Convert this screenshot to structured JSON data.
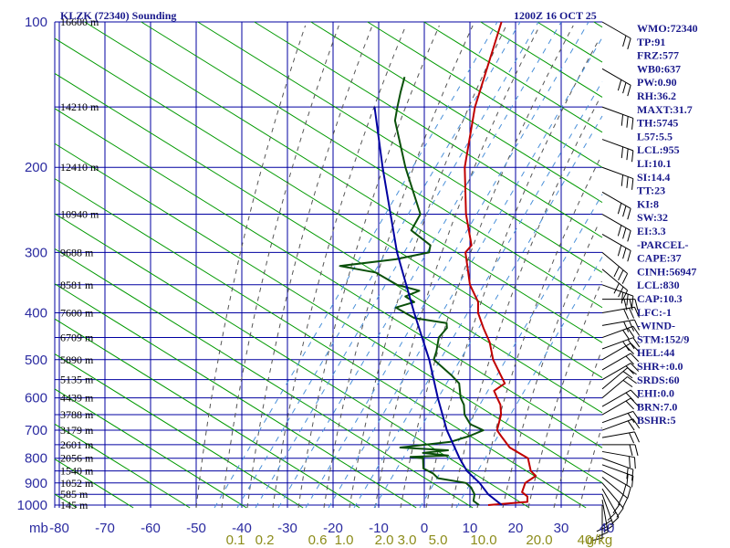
{
  "header": {
    "station": "KLZK (72340) Sounding",
    "datetime": "1200Z 16 OCT 25"
  },
  "chart_data": {
    "type": "skew-t log-p sounding",
    "pressure_axis": {
      "label": "mb",
      "range_mb": [
        100,
        1000
      ],
      "ticks": [
        {
          "p": 100,
          "label": "100"
        },
        {
          "p": 200,
          "label": "200"
        },
        {
          "p": 300,
          "label": "300"
        },
        {
          "p": 400,
          "label": "400"
        },
        {
          "p": 500,
          "label": "500"
        },
        {
          "p": 600,
          "label": "600"
        },
        {
          "p": 700,
          "label": "700"
        },
        {
          "p": 800,
          "label": "800"
        },
        {
          "p": 900,
          "label": "900"
        },
        {
          "p": 1000,
          "label": "1000"
        }
      ]
    },
    "temperature_axis": {
      "label_unit": "°C",
      "range_c": [
        -80,
        40
      ],
      "ticks": [
        {
          "t": -80,
          "label": "-80"
        },
        {
          "t": -70,
          "label": "-70"
        },
        {
          "t": -60,
          "label": "-60"
        },
        {
          "t": -50,
          "label": "-50"
        },
        {
          "t": -40,
          "label": "-40"
        },
        {
          "t": -30,
          "label": "-30"
        },
        {
          "t": -20,
          "label": "-20"
        },
        {
          "t": -10,
          "label": "-10"
        },
        {
          "t": 0,
          "label": "0"
        },
        {
          "t": 10,
          "label": "10"
        },
        {
          "t": 20,
          "label": "20"
        },
        {
          "t": 30,
          "label": "30"
        },
        {
          "t": 40,
          "label": "40"
        }
      ]
    },
    "mixing_ratio_labels": [
      {
        "w": 0.1,
        "label": "0.1"
      },
      {
        "w": 0.2,
        "label": "0.2"
      },
      {
        "w": 0.6,
        "label": "0.6"
      },
      {
        "w": 1.0,
        "label": "1.0"
      },
      {
        "w": 2.0,
        "label": "2.0"
      },
      {
        "w": 3.0,
        "label": "3.0"
      },
      {
        "w": 5.0,
        "label": "5.0"
      },
      {
        "w": 10.0,
        "label": "10.0"
      },
      {
        "w": 20.0,
        "label": "20.0"
      },
      {
        "w": 40.0,
        "label": "40"
      }
    ],
    "mixing_ratio_unit": "g/kg",
    "height_labels": [
      {
        "p": 100,
        "label": "16600 m"
      },
      {
        "p": 150,
        "label": "14210 m"
      },
      {
        "p": 200,
        "label": "12410 m"
      },
      {
        "p": 250,
        "label": "10940 m"
      },
      {
        "p": 300,
        "label": "9688 m"
      },
      {
        "p": 350,
        "label": "8581 m"
      },
      {
        "p": 400,
        "label": "7600 m"
      },
      {
        "p": 450,
        "label": "6709 m"
      },
      {
        "p": 500,
        "label": "5890 m"
      },
      {
        "p": 550,
        "label": "5135 m"
      },
      {
        "p": 600,
        "label": "4439 m"
      },
      {
        "p": 650,
        "label": "3788 m"
      },
      {
        "p": 700,
        "label": "3179 m"
      },
      {
        "p": 750,
        "label": "2601 m"
      },
      {
        "p": 800,
        "label": "2056 m"
      },
      {
        "p": 850,
        "label": "1540 m"
      },
      {
        "p": 900,
        "label": "1052 m"
      },
      {
        "p": 950,
        "label": "585 m"
      },
      {
        "p": 1000,
        "label": "145 m"
      }
    ],
    "series": [
      {
        "name": "temperature",
        "color": "#c00000",
        "points": [
          [
            1000,
            14
          ],
          [
            985,
            22
          ],
          [
            960,
            21
          ],
          [
            940,
            19
          ],
          [
            900,
            18
          ],
          [
            870,
            19
          ],
          [
            850,
            17
          ],
          [
            800,
            14
          ],
          [
            760,
            8
          ],
          [
            720,
            4
          ],
          [
            700,
            2
          ],
          [
            650,
            0
          ],
          [
            620,
            -2
          ],
          [
            600,
            -4
          ],
          [
            580,
            -6
          ],
          [
            560,
            -5
          ],
          [
            500,
            -12
          ],
          [
            460,
            -16
          ],
          [
            430,
            -20
          ],
          [
            400,
            -24
          ],
          [
            380,
            -26
          ],
          [
            350,
            -31
          ],
          [
            300,
            -38
          ],
          [
            290,
            -38
          ],
          [
            250,
            -45
          ],
          [
            200,
            -54
          ],
          [
            150,
            -63
          ],
          [
            100,
            -73
          ]
        ]
      },
      {
        "name": "dewpoint",
        "color": "#0a500a",
        "points": [
          [
            1000,
            12
          ],
          [
            980,
            10
          ],
          [
            950,
            9
          ],
          [
            920,
            7
          ],
          [
            900,
            5
          ],
          [
            880,
            -2
          ],
          [
            860,
            -4
          ],
          [
            840,
            -7
          ],
          [
            800,
            -9
          ],
          [
            795,
            -12
          ],
          [
            790,
            -4
          ],
          [
            780,
            -10
          ],
          [
            770,
            -5
          ],
          [
            760,
            -16
          ],
          [
            740,
            -6
          ],
          [
            720,
            -3
          ],
          [
            700,
            -1
          ],
          [
            680,
            -5
          ],
          [
            650,
            -8
          ],
          [
            620,
            -10
          ],
          [
            600,
            -12
          ],
          [
            560,
            -15
          ],
          [
            540,
            -18
          ],
          [
            500,
            -25
          ],
          [
            480,
            -26
          ],
          [
            450,
            -28
          ],
          [
            430,
            -28
          ],
          [
            420,
            -29
          ],
          [
            410,
            -37
          ],
          [
            400,
            -40
          ],
          [
            390,
            -43
          ],
          [
            380,
            -40
          ],
          [
            370,
            -43
          ],
          [
            360,
            -41
          ],
          [
            350,
            -47
          ],
          [
            330,
            -54
          ],
          [
            320,
            -63
          ],
          [
            310,
            -52
          ],
          [
            300,
            -46
          ],
          [
            290,
            -47
          ],
          [
            270,
            -54
          ],
          [
            250,
            -55
          ],
          [
            200,
            -67
          ],
          [
            160,
            -78
          ],
          [
            150,
            -80
          ],
          [
            140,
            -82
          ],
          [
            130,
            -84
          ]
        ]
      },
      {
        "name": "parcel",
        "color": "#0000a0",
        "points": [
          [
            1000,
            17
          ],
          [
            950,
            12
          ],
          [
            900,
            8
          ],
          [
            850,
            3
          ],
          [
            800,
            -1
          ],
          [
            700,
            -9
          ],
          [
            600,
            -17
          ],
          [
            500,
            -26
          ],
          [
            400,
            -38
          ],
          [
            300,
            -53
          ],
          [
            200,
            -72
          ],
          [
            150,
            -85
          ]
        ]
      }
    ],
    "wind_barbs": [
      {
        "p": 1000,
        "dir": 180,
        "kt": 10
      },
      {
        "p": 975,
        "dir": 190,
        "kt": 15
      },
      {
        "p": 950,
        "dir": 200,
        "kt": 15
      },
      {
        "p": 925,
        "dir": 210,
        "kt": 15
      },
      {
        "p": 900,
        "dir": 220,
        "kt": 15
      },
      {
        "p": 875,
        "dir": 230,
        "kt": 15
      },
      {
        "p": 850,
        "dir": 240,
        "kt": 15
      },
      {
        "p": 825,
        "dir": 250,
        "kt": 15
      },
      {
        "p": 800,
        "dir": 250,
        "kt": 15
      },
      {
        "p": 775,
        "dir": 260,
        "kt": 15
      },
      {
        "p": 750,
        "dir": 270,
        "kt": 15
      },
      {
        "p": 725,
        "dir": 280,
        "kt": 15
      },
      {
        "p": 700,
        "dir": 290,
        "kt": 15
      },
      {
        "p": 675,
        "dir": 290,
        "kt": 15
      },
      {
        "p": 650,
        "dir": 300,
        "kt": 20
      },
      {
        "p": 625,
        "dir": 300,
        "kt": 20
      },
      {
        "p": 600,
        "dir": 310,
        "kt": 20
      },
      {
        "p": 575,
        "dir": 310,
        "kt": 20
      },
      {
        "p": 550,
        "dir": 300,
        "kt": 20
      },
      {
        "p": 525,
        "dir": 300,
        "kt": 20
      },
      {
        "p": 500,
        "dir": 300,
        "kt": 20
      },
      {
        "p": 475,
        "dir": 290,
        "kt": 25
      },
      {
        "p": 450,
        "dir": 290,
        "kt": 25
      },
      {
        "p": 425,
        "dir": 280,
        "kt": 25
      },
      {
        "p": 400,
        "dir": 280,
        "kt": 25
      },
      {
        "p": 375,
        "dir": 270,
        "kt": 25
      },
      {
        "p": 350,
        "dir": 250,
        "kt": 25
      },
      {
        "p": 325,
        "dir": 230,
        "kt": 25
      },
      {
        "p": 300,
        "dir": 230,
        "kt": 30
      },
      {
        "p": 275,
        "dir": 240,
        "kt": 30
      },
      {
        "p": 250,
        "dir": 240,
        "kt": 30
      },
      {
        "p": 225,
        "dir": 240,
        "kt": 30
      },
      {
        "p": 200,
        "dir": 250,
        "kt": 30
      },
      {
        "p": 175,
        "dir": 250,
        "kt": 30
      },
      {
        "p": 150,
        "dir": 250,
        "kt": 30
      },
      {
        "p": 125,
        "dir": 240,
        "kt": 25
      },
      {
        "p": 100,
        "dir": 240,
        "kt": 20
      }
    ],
    "colors": {
      "grid": "#0000a0",
      "dry_adiabat": "#009900",
      "moist_adiabat": "#555555",
      "mixing_ratio": "#4a90d9",
      "temperature": "#c00000",
      "dewpoint": "#0a500a",
      "parcel": "#0000a0"
    }
  },
  "indices": [
    "WMO:72340",
    "TP:91",
    "FRZ:577",
    "WB0:637",
    "PW:0.90",
    "RH:36.2",
    "MAXT:31.7",
    "TH:5745",
    "L57:5.5",
    "LCL:955",
    "LI:10.1",
    "SI:14.4",
    "TT:23",
    "KI:8",
    "SW:32",
    "EI:3.3",
    "-PARCEL-",
    "CAPE:37",
    "CINH:56947",
    "LCL:830",
    "CAP:10.3",
    "LFC:-1",
    "-WIND-",
    "STM:152/9",
    "HEL:44",
    "SHR+:0.0",
    "SRDS:60",
    "EHI:0.0",
    "BRN:7.0",
    "BSHR:5"
  ]
}
